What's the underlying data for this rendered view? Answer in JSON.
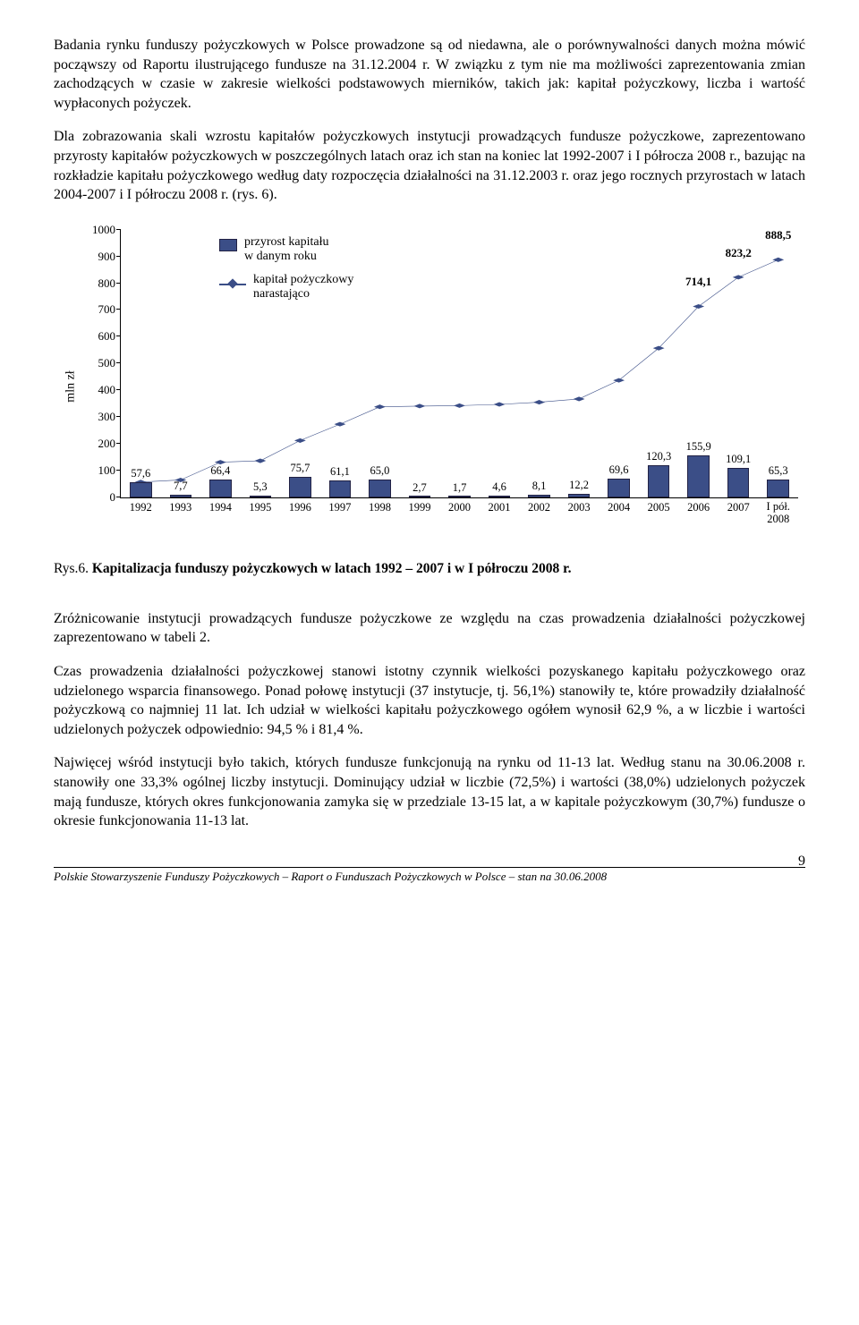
{
  "paragraphs": {
    "p1": "Badania rynku funduszy pożyczkowych w Polsce prowadzone są od niedawna, ale o porównywalności danych można mówić począwszy od Raportu ilustrującego fundusze na 31.12.2004 r. W związku z tym nie ma możliwości zaprezentowania zmian zachodzących w czasie w zakresie wielkości podstawowych mierników, takich jak: kapitał pożyczkowy, liczba i wartość wypłaconych pożyczek.",
    "p2": "Dla zobrazowania skali wzrostu kapitałów pożyczkowych instytucji prowadzących fundusze pożyczkowe, zaprezentowano przyrosty kapitałów pożyczkowych w poszczególnych latach oraz ich stan na koniec lat 1992-2007 i I półrocza 2008 r., bazując na rozkładzie kapitału pożyczkowego według daty rozpoczęcia działalności na 31.12.2003 r. oraz jego rocznych przyrostach w latach 2004-2007 i I półroczu 2008 r. (rys. 6).",
    "p3": "Zróżnicowanie instytucji prowadzących fundusze pożyczkowe ze względu na czas prowadzenia działalności pożyczkowej zaprezentowano w tabeli 2.",
    "p4": "Czas prowadzenia działalności pożyczkowej stanowi istotny czynnik wielkości pozyskanego kapitału pożyczkowego oraz udzielonego wsparcia finansowego. Ponad połowę instytucji (37 instytucje, tj. 56,1%) stanowiły te, które prowadziły działalność pożyczkową co najmniej 11 lat. Ich udział w wielkości kapitału pożyczkowego ogółem wynosił 62,9 %, a w liczbie i wartości udzielonych pożyczek odpowiednio: 94,5 % i 81,4 %.",
    "p5": "Najwięcej wśród instytucji było takich, których fundusze funkcjonują na rynku od 11-13 lat. Według stanu na 30.06.2008 r. stanowiły one 33,3% ogólnej liczby instytucji. Dominujący udział w liczbie (72,5%) i wartości (38,0%) udzielonych pożyczek mają fundusze, których okres funkcjonowania zamyka się w przedziale 13-15 lat, a w kapitale pożyczkowym (30,7%) fundusze o okresie funkcjonowania 11-13 lat."
  },
  "chart": {
    "ylabel": "mln zł",
    "ymax": 1000,
    "ytick_step": 100,
    "categories": [
      "1992",
      "1993",
      "1994",
      "1995",
      "1996",
      "1997",
      "1998",
      "1999",
      "2000",
      "2001",
      "2002",
      "2003",
      "2004",
      "2005",
      "2006",
      "2007",
      "I pół. 2008"
    ],
    "bars": [
      57.6,
      7.7,
      66.4,
      5.3,
      75.7,
      61.1,
      65.0,
      2.7,
      1.7,
      4.6,
      8.1,
      12.2,
      69.6,
      120.3,
      155.9,
      109.1,
      65.3
    ],
    "bar_labels": [
      "57,6",
      "7,7",
      "66,4",
      "5,3",
      "75,7",
      "61,1",
      "65,0",
      "2,7",
      "1,7",
      "4,6",
      "8,1",
      "12,2",
      "69,6",
      "120,3",
      "155,9",
      "109,1",
      "65,3"
    ],
    "line": [
      57.6,
      65.3,
      131.7,
      137.0,
      212.7,
      273.8,
      338.8,
      341.5,
      343.2,
      347.8,
      355.9,
      368.1,
      437.7,
      558.0,
      714.1,
      823.2,
      888.5
    ],
    "line_labels": {
      "14": "714,1",
      "15": "823,2",
      "16": "888,5"
    },
    "bar_color": "#3b4e87",
    "line_color": "#3b4e87",
    "legend": {
      "bar": "przyrost kapitału\nw danym roku",
      "line": "kapitał pożyczkowy\nnarastająco"
    }
  },
  "caption_prefix": "Rys.6. ",
  "caption_bold": "Kapitalizacja funduszy pożyczkowych w latach 1992 – 2007 i w I półroczu 2008 r.",
  "footer": "Polskie Stowarzyszenie Funduszy Pożyczkowych – Raport o Funduszach Pożyczkowych w Polsce – stan na 30.06.2008",
  "page_number": "9"
}
